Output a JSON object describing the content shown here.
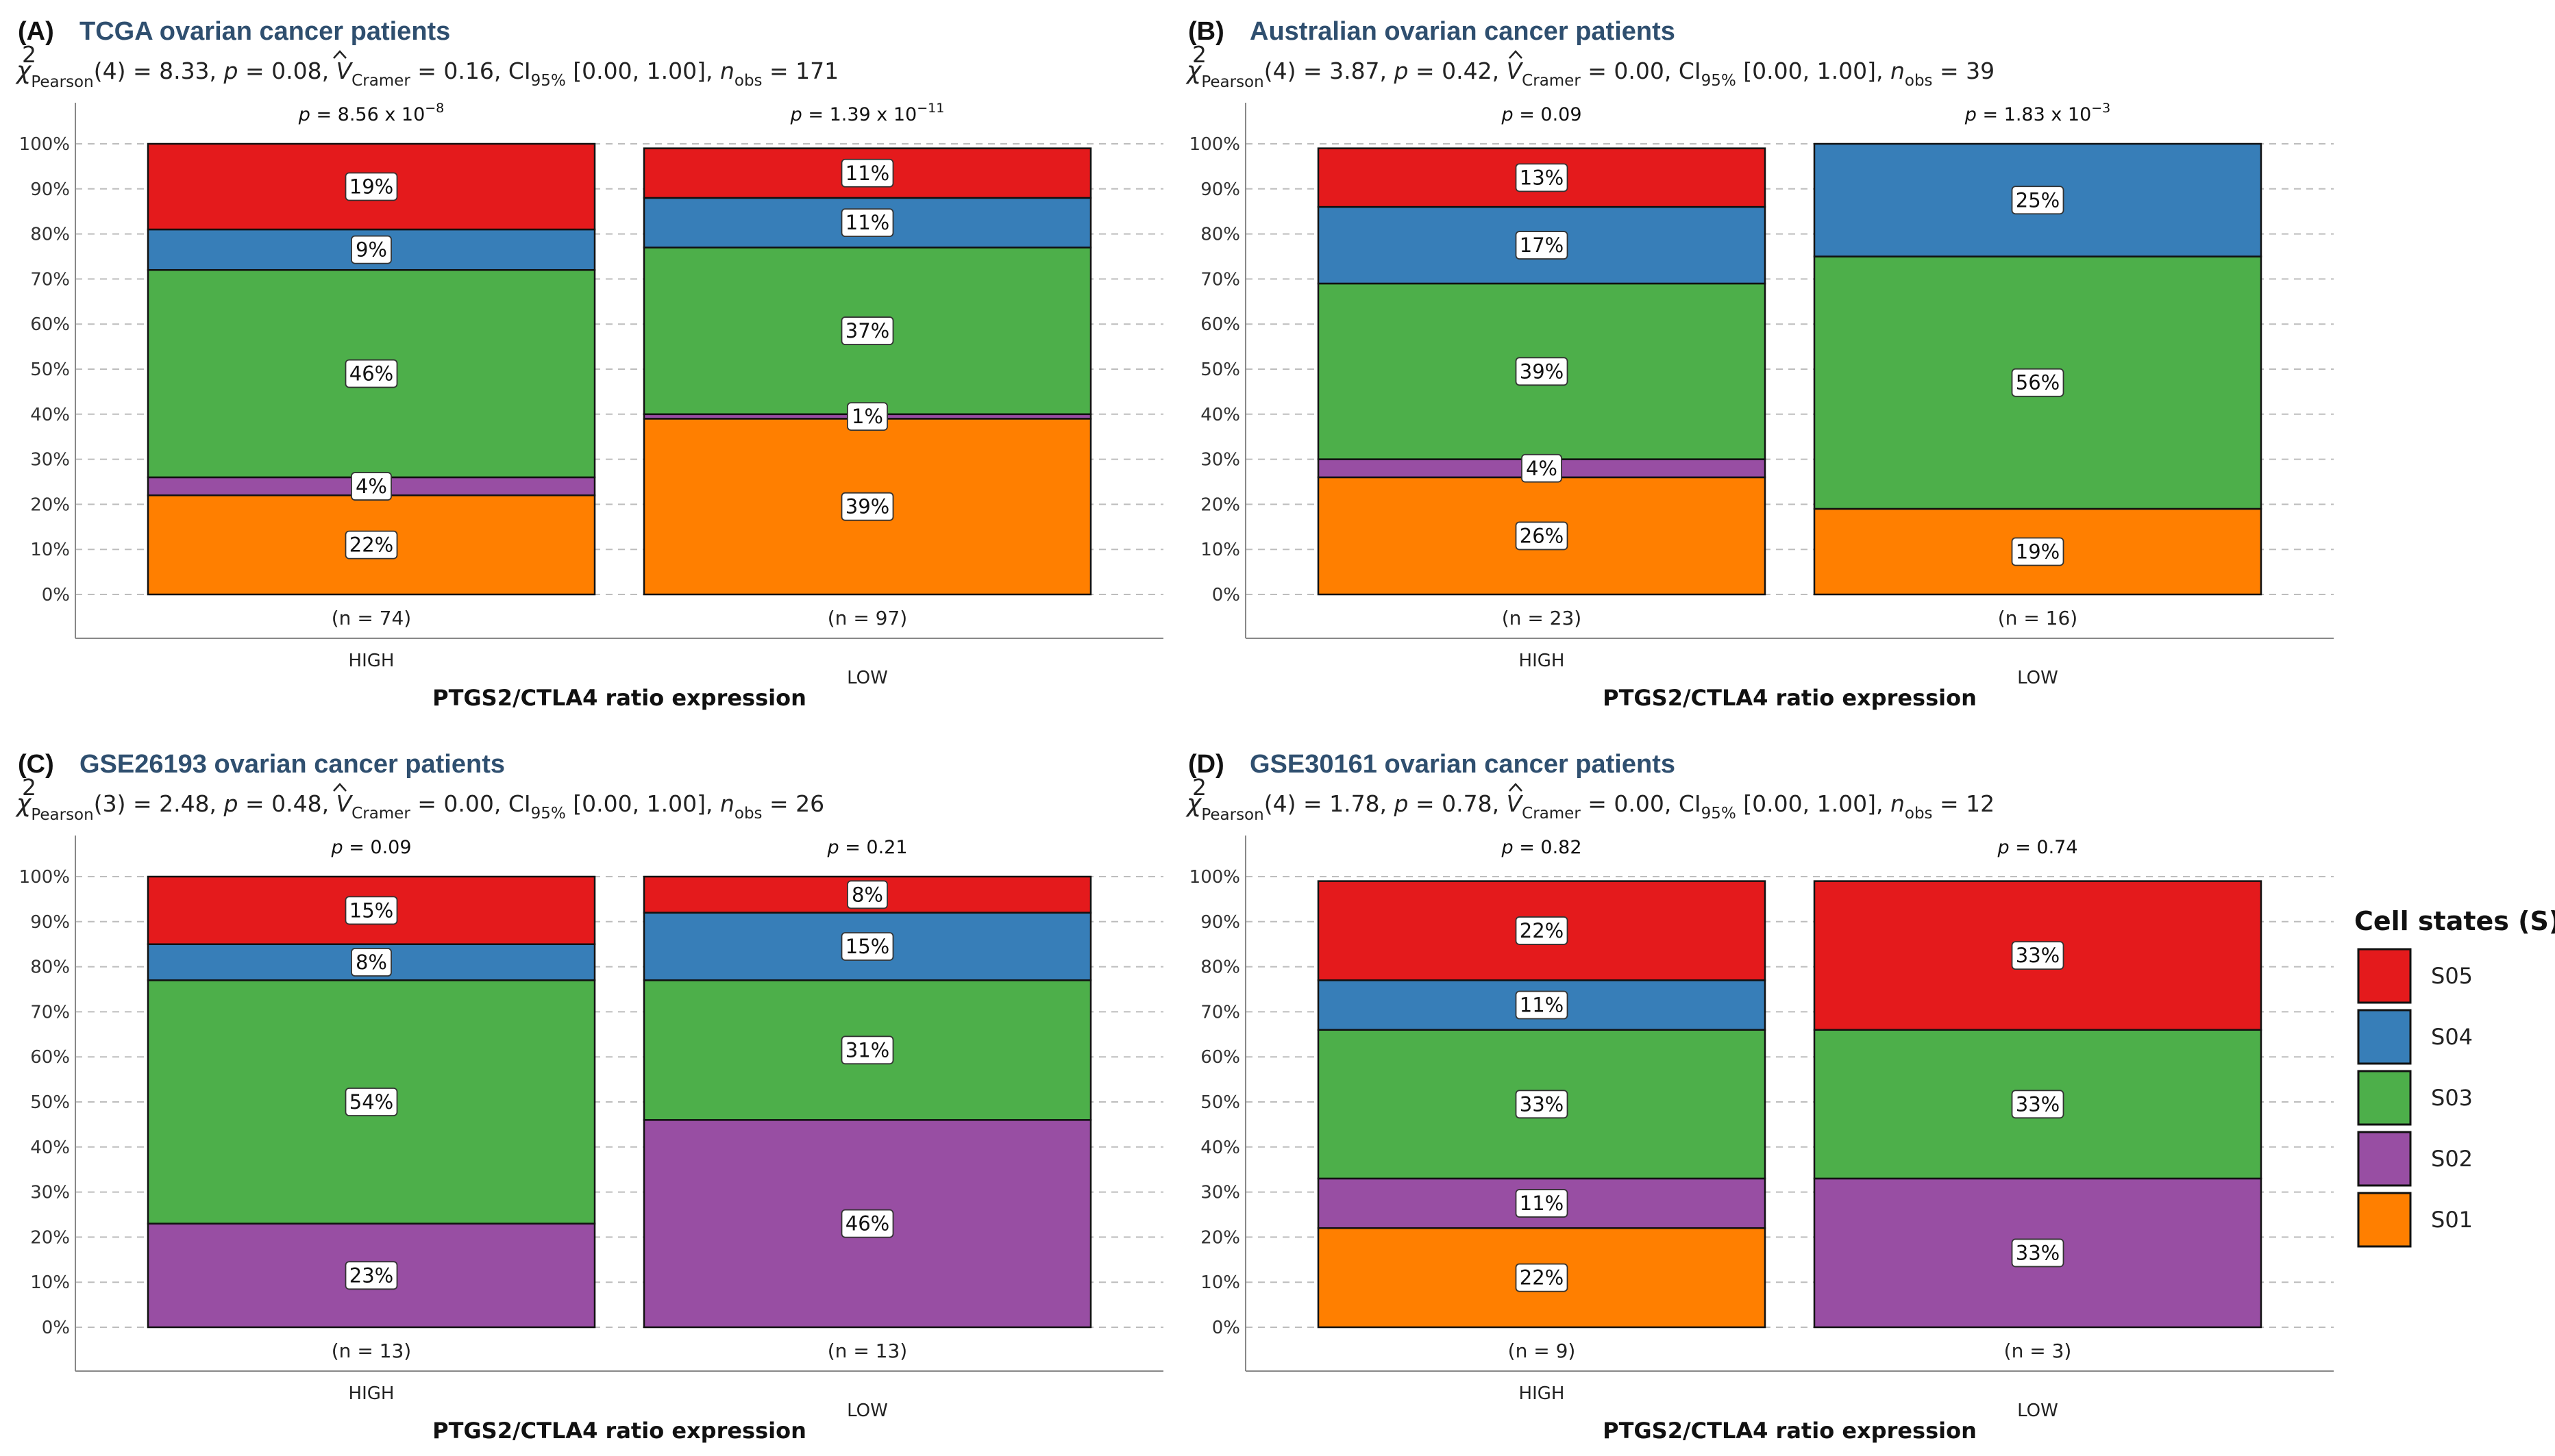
{
  "colors": {
    "S05": "#E41A1C",
    "S04": "#377EB8",
    "S03": "#4DAF4A",
    "S02": "#984EA3",
    "S01": "#FF7F00"
  },
  "legend": {
    "title": "Cell states (S)",
    "items": [
      "S05",
      "S04",
      "S03",
      "S02",
      "S01"
    ]
  },
  "y_ticks": [
    "0%",
    "10%",
    "20%",
    "30%",
    "40%",
    "50%",
    "60%",
    "70%",
    "80%",
    "90%",
    "100%"
  ],
  "chart_data": [
    {
      "type": "bar",
      "panel": "(A)",
      "title": "TCGA ovarian cancer patients",
      "stats": {
        "df": "4",
        "chi": "8.33",
        "p": "0.08",
        "v": "0.16",
        "ci": "[0.00, 1.00]",
        "nobs": "171"
      },
      "xlabel": "PTGS2/CTLA4 ratio expression",
      "ylim": [
        0,
        100
      ],
      "categories": [
        "HIGH",
        "LOW"
      ],
      "bars": [
        {
          "category": "HIGH",
          "n_label": "(n = 74)",
          "p_value": {
            "base": "8.56 x 10",
            "exp": "−8"
          },
          "segments": [
            {
              "state": "S01",
              "value": 22,
              "label": "22%"
            },
            {
              "state": "S02",
              "value": 4,
              "label": "4%"
            },
            {
              "state": "S03",
              "value": 46,
              "label": "46%"
            },
            {
              "state": "S04",
              "value": 9,
              "label": "9%"
            },
            {
              "state": "S05",
              "value": 19,
              "label": "19%"
            }
          ]
        },
        {
          "category": "LOW",
          "n_label": "(n = 97)",
          "p_value": {
            "base": "1.39 x 10",
            "exp": "−11"
          },
          "segments": [
            {
              "state": "S01",
              "value": 39,
              "label": "39%"
            },
            {
              "state": "S02",
              "value": 1,
              "label": "1%"
            },
            {
              "state": "S03",
              "value": 37,
              "label": "37%"
            },
            {
              "state": "S04",
              "value": 11,
              "label": "11%"
            },
            {
              "state": "S05",
              "value": 11,
              "label": "11%"
            }
          ]
        }
      ]
    },
    {
      "type": "bar",
      "panel": "(B)",
      "title": "Australian ovarian cancer patients",
      "stats": {
        "df": "4",
        "chi": "3.87",
        "p": "0.42",
        "v": "0.00",
        "ci": "[0.00, 1.00]",
        "nobs": "39"
      },
      "xlabel": "PTGS2/CTLA4 ratio expression",
      "ylim": [
        0,
        100
      ],
      "categories": [
        "HIGH",
        "LOW"
      ],
      "bars": [
        {
          "category": "HIGH",
          "n_label": "(n = 23)",
          "p_value": {
            "base": "0.09",
            "exp": ""
          },
          "segments": [
            {
              "state": "S01",
              "value": 26,
              "label": "26%"
            },
            {
              "state": "S02",
              "value": 4,
              "label": "4%"
            },
            {
              "state": "S03",
              "value": 39,
              "label": "39%"
            },
            {
              "state": "S04",
              "value": 17,
              "label": "17%"
            },
            {
              "state": "S05",
              "value": 13,
              "label": "13%"
            }
          ]
        },
        {
          "category": "LOW",
          "n_label": "(n = 16)",
          "p_value": {
            "base": "1.83 x 10",
            "exp": "−3"
          },
          "segments": [
            {
              "state": "S01",
              "value": 19,
              "label": "19%"
            },
            {
              "state": "S03",
              "value": 56,
              "label": "56%"
            },
            {
              "state": "S04",
              "value": 25,
              "label": "25%"
            }
          ]
        }
      ]
    },
    {
      "type": "bar",
      "panel": "(C)",
      "title": "GSE26193 ovarian cancer patients",
      "stats": {
        "df": "3",
        "chi": "2.48",
        "p": "0.48",
        "v": "0.00",
        "ci": "[0.00, 1.00]",
        "nobs": "26"
      },
      "xlabel": "PTGS2/CTLA4 ratio expression",
      "ylim": [
        0,
        100
      ],
      "categories": [
        "HIGH",
        "LOW"
      ],
      "bars": [
        {
          "category": "HIGH",
          "n_label": "(n = 13)",
          "p_value": {
            "base": "0.09",
            "exp": ""
          },
          "segments": [
            {
              "state": "S02",
              "value": 23,
              "label": "23%"
            },
            {
              "state": "S03",
              "value": 54,
              "label": "54%"
            },
            {
              "state": "S04",
              "value": 8,
              "label": "8%"
            },
            {
              "state": "S05",
              "value": 15,
              "label": "15%"
            }
          ]
        },
        {
          "category": "LOW",
          "n_label": "(n = 13)",
          "p_value": {
            "base": "0.21",
            "exp": ""
          },
          "segments": [
            {
              "state": "S02",
              "value": 46,
              "label": "46%"
            },
            {
              "state": "S03",
              "value": 31,
              "label": "31%"
            },
            {
              "state": "S04",
              "value": 15,
              "label": "15%"
            },
            {
              "state": "S05",
              "value": 8,
              "label": "8%"
            }
          ]
        }
      ]
    },
    {
      "type": "bar",
      "panel": "(D)",
      "title": "GSE30161 ovarian cancer patients",
      "stats": {
        "df": "4",
        "chi": "1.78",
        "p": "0.78",
        "v": "0.00",
        "ci": "[0.00, 1.00]",
        "nobs": "12"
      },
      "xlabel": "PTGS2/CTLA4 ratio expression",
      "ylim": [
        0,
        100
      ],
      "categories": [
        "HIGH",
        "LOW"
      ],
      "bars": [
        {
          "category": "HIGH",
          "n_label": "(n = 9)",
          "p_value": {
            "base": "0.82",
            "exp": ""
          },
          "segments": [
            {
              "state": "S01",
              "value": 22,
              "label": "22%"
            },
            {
              "state": "S02",
              "value": 11,
              "label": "11%"
            },
            {
              "state": "S03",
              "value": 33,
              "label": "33%"
            },
            {
              "state": "S04",
              "value": 11,
              "label": "11%"
            },
            {
              "state": "S05",
              "value": 22,
              "label": "22%"
            }
          ]
        },
        {
          "category": "LOW",
          "n_label": "(n = 3)",
          "p_value": {
            "base": "0.74",
            "exp": ""
          },
          "segments": [
            {
              "state": "S02",
              "value": 33,
              "label": "33%"
            },
            {
              "state": "S03",
              "value": 33,
              "label": "33%"
            },
            {
              "state": "S05",
              "value": 33,
              "label": "33%"
            }
          ]
        }
      ]
    }
  ]
}
